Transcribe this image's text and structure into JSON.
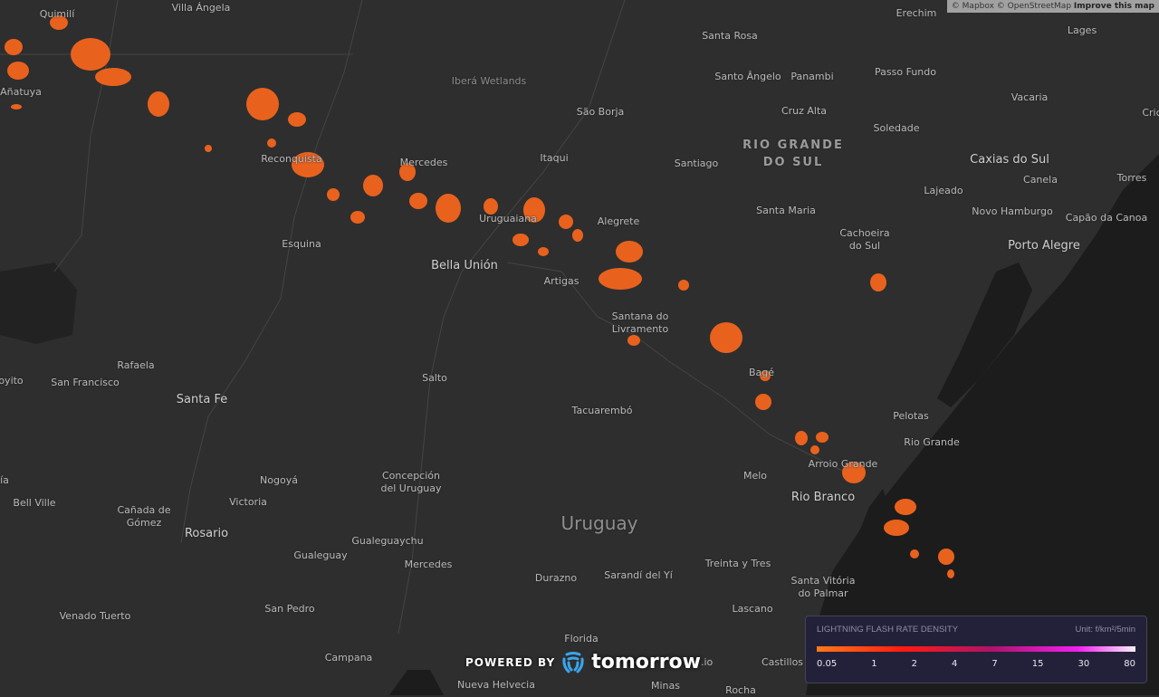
{
  "attribution": {
    "mapbox": "© Mapbox",
    "osm": "© OpenStreetMap",
    "improve": "Improve this map"
  },
  "places": [
    "Quimilí",
    "Villa Ángela",
    "Añatuya",
    "Iberá Wetlands",
    "São Borja",
    "Itaqui",
    "Santiago",
    "Reconquista",
    "Mercedes",
    "Santo Ângelo",
    "Panambi",
    "Santa Rosa",
    "Erechim",
    "Lages",
    "Passo Fundo",
    "Vacaria",
    "Cruz Alta",
    "Soledade",
    "Caxias do Sul",
    "Canela",
    "Lajeado",
    "Torres",
    "Novo Hamburgo",
    "Capão da Canoa",
    "Porto Alegre",
    "Cachoeira do Sul",
    "Santa Maria",
    "Alegrete",
    "Uruguaiana",
    "Esquina",
    "Bella Unión",
    "Artigas",
    "Santana do Livramento",
    "Rafaela",
    "San Francisco",
    "oyito",
    "Santa Fe",
    "Salto",
    "Tacuarembó",
    "Bagé",
    "Pelotas",
    "Rio Grande",
    "Arroio Grande",
    "Melo",
    "Rio Branco",
    "Nogoyá",
    "Concepción del Uruguay",
    "Victoria",
    "Bell Ville",
    "Cañada de Gómez",
    "Rosario",
    "Gualeguay",
    "Gualeguaychu",
    "Mercedes",
    "Durazno",
    "Sarandí del Yí",
    "Treinta y Tres",
    "Santa Vitória do Palmar",
    "Venado Tuerto",
    "San Pedro",
    "Lascano",
    "Campana",
    "Florida",
    "Nueva Helvecia",
    "Minas",
    "Castillos",
    "Rocha",
    "Cric",
    "ía"
  ],
  "region": "RIO GRANDE DO SUL",
  "country": "Uruguay",
  "logo": {
    "powered_by": "POWERED BY",
    "brand": "tomorrow",
    "suffix": ".io"
  },
  "legend": {
    "title": "LIGHTNING FLASH RATE DENSITY",
    "unit": "Unit: f/km²/5min",
    "ticks": [
      "0.05",
      "1",
      "2",
      "4",
      "7",
      "15",
      "30",
      "80"
    ],
    "colors": [
      "#ff7a1a",
      "#ff1a10",
      "#b0126a",
      "#f020f0",
      "#f4f0f8"
    ]
  },
  "colors": {
    "land": "#2e2e2e",
    "ocean": "#1c1c1c",
    "storm": "#e8621e"
  }
}
